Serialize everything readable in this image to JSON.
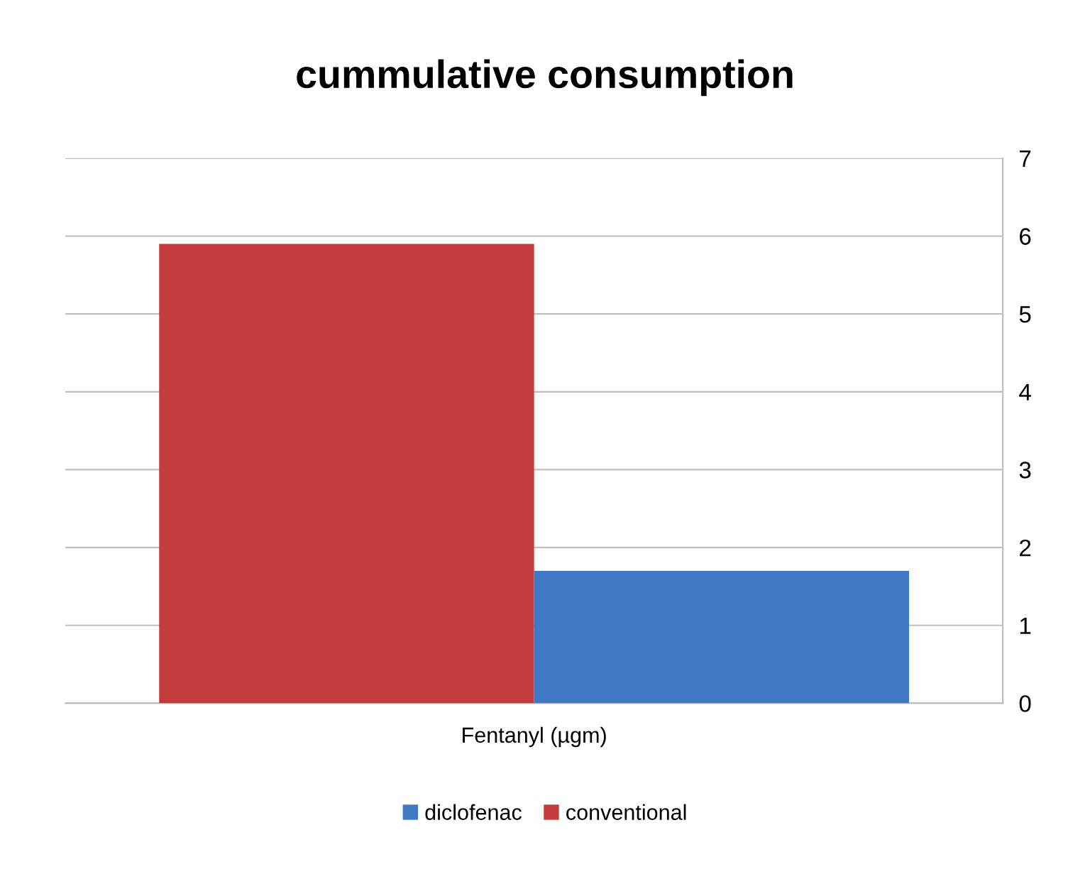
{
  "chart_data": {
    "type": "bar",
    "title": "cummulative consumption",
    "categories": [
      "Fentanyl (µgm)"
    ],
    "series": [
      {
        "name": "conventional",
        "color": "#c33b3a",
        "values": [
          5.9
        ]
      },
      {
        "name": "diclofenac",
        "color": "#3f78c4",
        "values": [
          1.7
        ]
      }
    ],
    "ylim": [
      0,
      7
    ],
    "yticks": [
      0,
      1,
      2,
      3,
      4,
      5,
      6,
      7
    ],
    "grid": "y",
    "legend": "bottom"
  }
}
